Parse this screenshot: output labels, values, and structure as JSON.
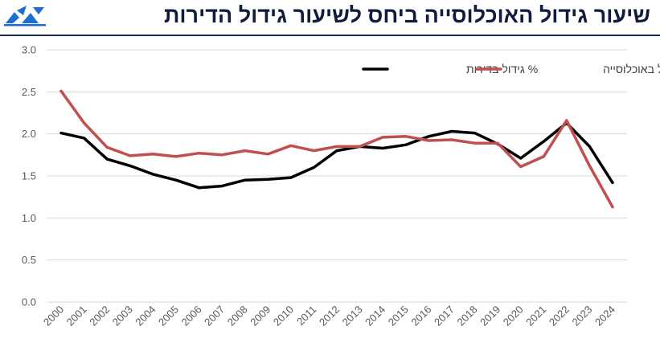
{
  "header": {
    "title": "שיעור גידול האוכלוסייה ביחס לשיעור גידול הדירות",
    "logo_icon": "organization-logo-icon"
  },
  "colors": {
    "title": "#111c3c",
    "rule": "#1a2a5c",
    "logo": "#1e6ed0",
    "grid": "#d9d9d9",
    "axis_text": "#595959",
    "housing": "#000000",
    "population": "#c0504d"
  },
  "chart_data": {
    "type": "line",
    "title": "",
    "xlabel": "",
    "ylabel": "",
    "ylim": [
      0,
      3
    ],
    "yticks": [
      "0.0",
      "0.5",
      "1.0",
      "1.5",
      "2.0",
      "2.5",
      "3.0"
    ],
    "grid": true,
    "legend_position": "top-right",
    "x": [
      "2000",
      "2001",
      "2002",
      "2003",
      "2004",
      "2005",
      "2006",
      "2007",
      "2008",
      "2009",
      "2010",
      "2011",
      "2012",
      "2013",
      "2014",
      "2015",
      "2016",
      "2017",
      "2018",
      "2019",
      "2020",
      "2021",
      "2022",
      "2023",
      "2024"
    ],
    "series": [
      {
        "name": "% גידול בדירות",
        "color": "#000000",
        "values": [
          2.01,
          1.95,
          1.7,
          1.62,
          1.52,
          1.45,
          1.36,
          1.38,
          1.45,
          1.46,
          1.48,
          1.6,
          1.8,
          1.85,
          1.83,
          1.87,
          1.97,
          2.03,
          2.01,
          1.88,
          1.71,
          1.91,
          2.13,
          1.85,
          1.42
        ]
      },
      {
        "name": "% גידול באוכלוסייה",
        "color": "#c0504d",
        "values": [
          2.51,
          2.13,
          1.84,
          1.74,
          1.76,
          1.73,
          1.77,
          1.75,
          1.8,
          1.76,
          1.86,
          1.8,
          1.85,
          1.85,
          1.96,
          1.97,
          1.92,
          1.93,
          1.89,
          1.89,
          1.61,
          1.73,
          2.16,
          1.62,
          1.13
        ]
      }
    ]
  }
}
